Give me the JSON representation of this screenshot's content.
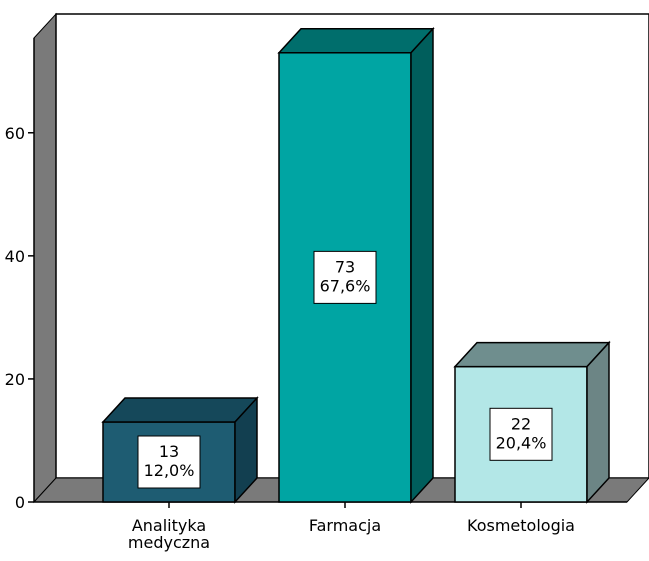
{
  "chart_data": {
    "type": "bar",
    "three_d": true,
    "categories": [
      "Analityka medyczna",
      "Farmacja",
      "Kosmetologia"
    ],
    "category_lines": [
      [
        "Analityka",
        "medyczna"
      ],
      [
        "Farmacja"
      ],
      [
        "Kosmetologia"
      ]
    ],
    "values": [
      13,
      73,
      22
    ],
    "percents": [
      "12,0%",
      "67,6%",
      "20,4%"
    ],
    "data_labels": [
      [
        "13",
        "12,0%"
      ],
      [
        "73",
        "67,6%"
      ],
      [
        "22",
        "20,4%"
      ]
    ],
    "bar_colors": [
      {
        "front": "#1e5c72",
        "top": "#15485a",
        "side": "#123f50"
      },
      {
        "front": "#00a5a3",
        "top": "#006e6c",
        "side": "#005e5c"
      },
      {
        "front": "#b3e7e7",
        "top": "#6f8e8e",
        "side": "#6c8585"
      }
    ],
    "y_ticks": [
      0,
      20,
      40,
      60
    ],
    "ylim": [
      0,
      80
    ],
    "title": "",
    "xlabel": "",
    "ylabel": "",
    "grid": false,
    "legend": "none"
  }
}
